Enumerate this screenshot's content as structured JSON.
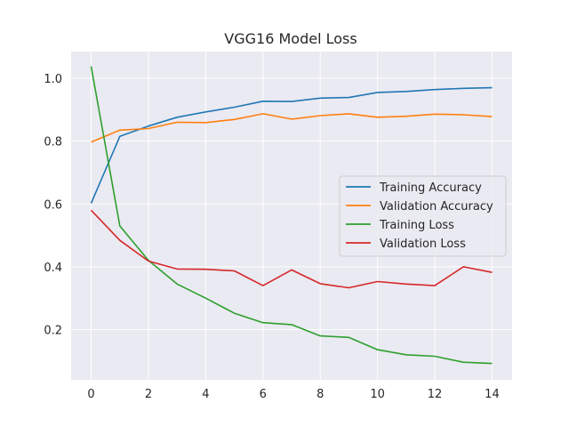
{
  "chart_data": {
    "type": "line",
    "title": "VGG16 Model Loss",
    "xlabel": "",
    "ylabel": "",
    "x": [
      0,
      1,
      2,
      3,
      4,
      5,
      6,
      7,
      8,
      9,
      10,
      11,
      12,
      13,
      14
    ],
    "xlim": [
      -0.7,
      14.7
    ],
    "ylim": [
      0.04,
      1.085
    ],
    "xticks": [
      0,
      2,
      4,
      6,
      8,
      10,
      12,
      14
    ],
    "yticks": [
      0.2,
      0.4,
      0.6,
      0.8,
      1.0
    ],
    "ytick_labels": [
      "0.2",
      "0.4",
      "0.6",
      "0.8",
      "1.0"
    ],
    "grid": true,
    "legend_position": "center-right",
    "background": "#eaeaf2",
    "series": [
      {
        "name": "Training Accuracy",
        "color": "#1f77b4",
        "values": [
          0.602,
          0.815,
          0.848,
          0.876,
          0.893,
          0.908,
          0.927,
          0.926,
          0.937,
          0.939,
          0.955,
          0.958,
          0.964,
          0.968,
          0.97
        ]
      },
      {
        "name": "Validation Accuracy",
        "color": "#ff7f0e",
        "values": [
          0.797,
          0.835,
          0.84,
          0.86,
          0.859,
          0.869,
          0.887,
          0.87,
          0.881,
          0.887,
          0.876,
          0.879,
          0.886,
          0.884,
          0.878
        ]
      },
      {
        "name": "Training Loss",
        "color": "#2ca02c",
        "values": [
          1.038,
          0.53,
          0.42,
          0.345,
          0.3,
          0.252,
          0.222,
          0.216,
          0.18,
          0.175,
          0.136,
          0.12,
          0.115,
          0.096,
          0.092
        ]
      },
      {
        "name": "Validation Loss",
        "color": "#d62728",
        "values": [
          0.58,
          0.484,
          0.418,
          0.393,
          0.392,
          0.387,
          0.34,
          0.39,
          0.346,
          0.333,
          0.353,
          0.345,
          0.34,
          0.4,
          0.382
        ]
      }
    ]
  }
}
